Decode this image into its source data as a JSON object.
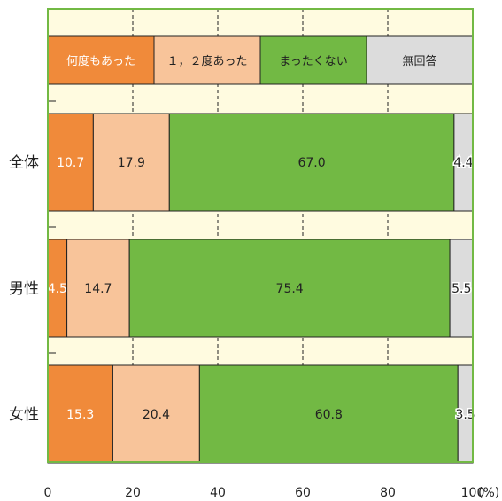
{
  "chart_data": {
    "type": "bar",
    "orientation": "horizontal",
    "stacked": true,
    "categories": [
      "全体",
      "男性",
      "女性"
    ],
    "series": [
      {
        "name": "何度もあった",
        "values": [
          10.7,
          4.5,
          15.3
        ],
        "color": "#f08a3a",
        "label_color": "#ffffff"
      },
      {
        "name": "１，２度あった",
        "values": [
          17.9,
          14.7,
          20.4
        ],
        "color": "#f8c49a",
        "label_color": "#222222"
      },
      {
        "name": "まったくない",
        "values": [
          67.0,
          75.4,
          60.8
        ],
        "color": "#72b944",
        "label_color": "#222222"
      },
      {
        "name": "無回答",
        "values": [
          4.4,
          5.5,
          3.5
        ],
        "color": "#dcdcdc",
        "label_color": "#222222"
      }
    ],
    "value_labels": [
      [
        "10.7",
        "17.9",
        "67.0",
        "4.4"
      ],
      [
        "4.5",
        "14.7",
        "75.4",
        "5.5"
      ],
      [
        "15.3",
        "20.4",
        "60.8",
        "3.5"
      ]
    ],
    "xlim": [
      0,
      100
    ],
    "xticks": [
      "0",
      "20",
      "40",
      "60",
      "80",
      "100"
    ],
    "x_unit": "(%)",
    "grid": "vertical dashed",
    "legend_position": "top",
    "plot_background": "#fffbe0",
    "frame_color": "#72b944"
  }
}
